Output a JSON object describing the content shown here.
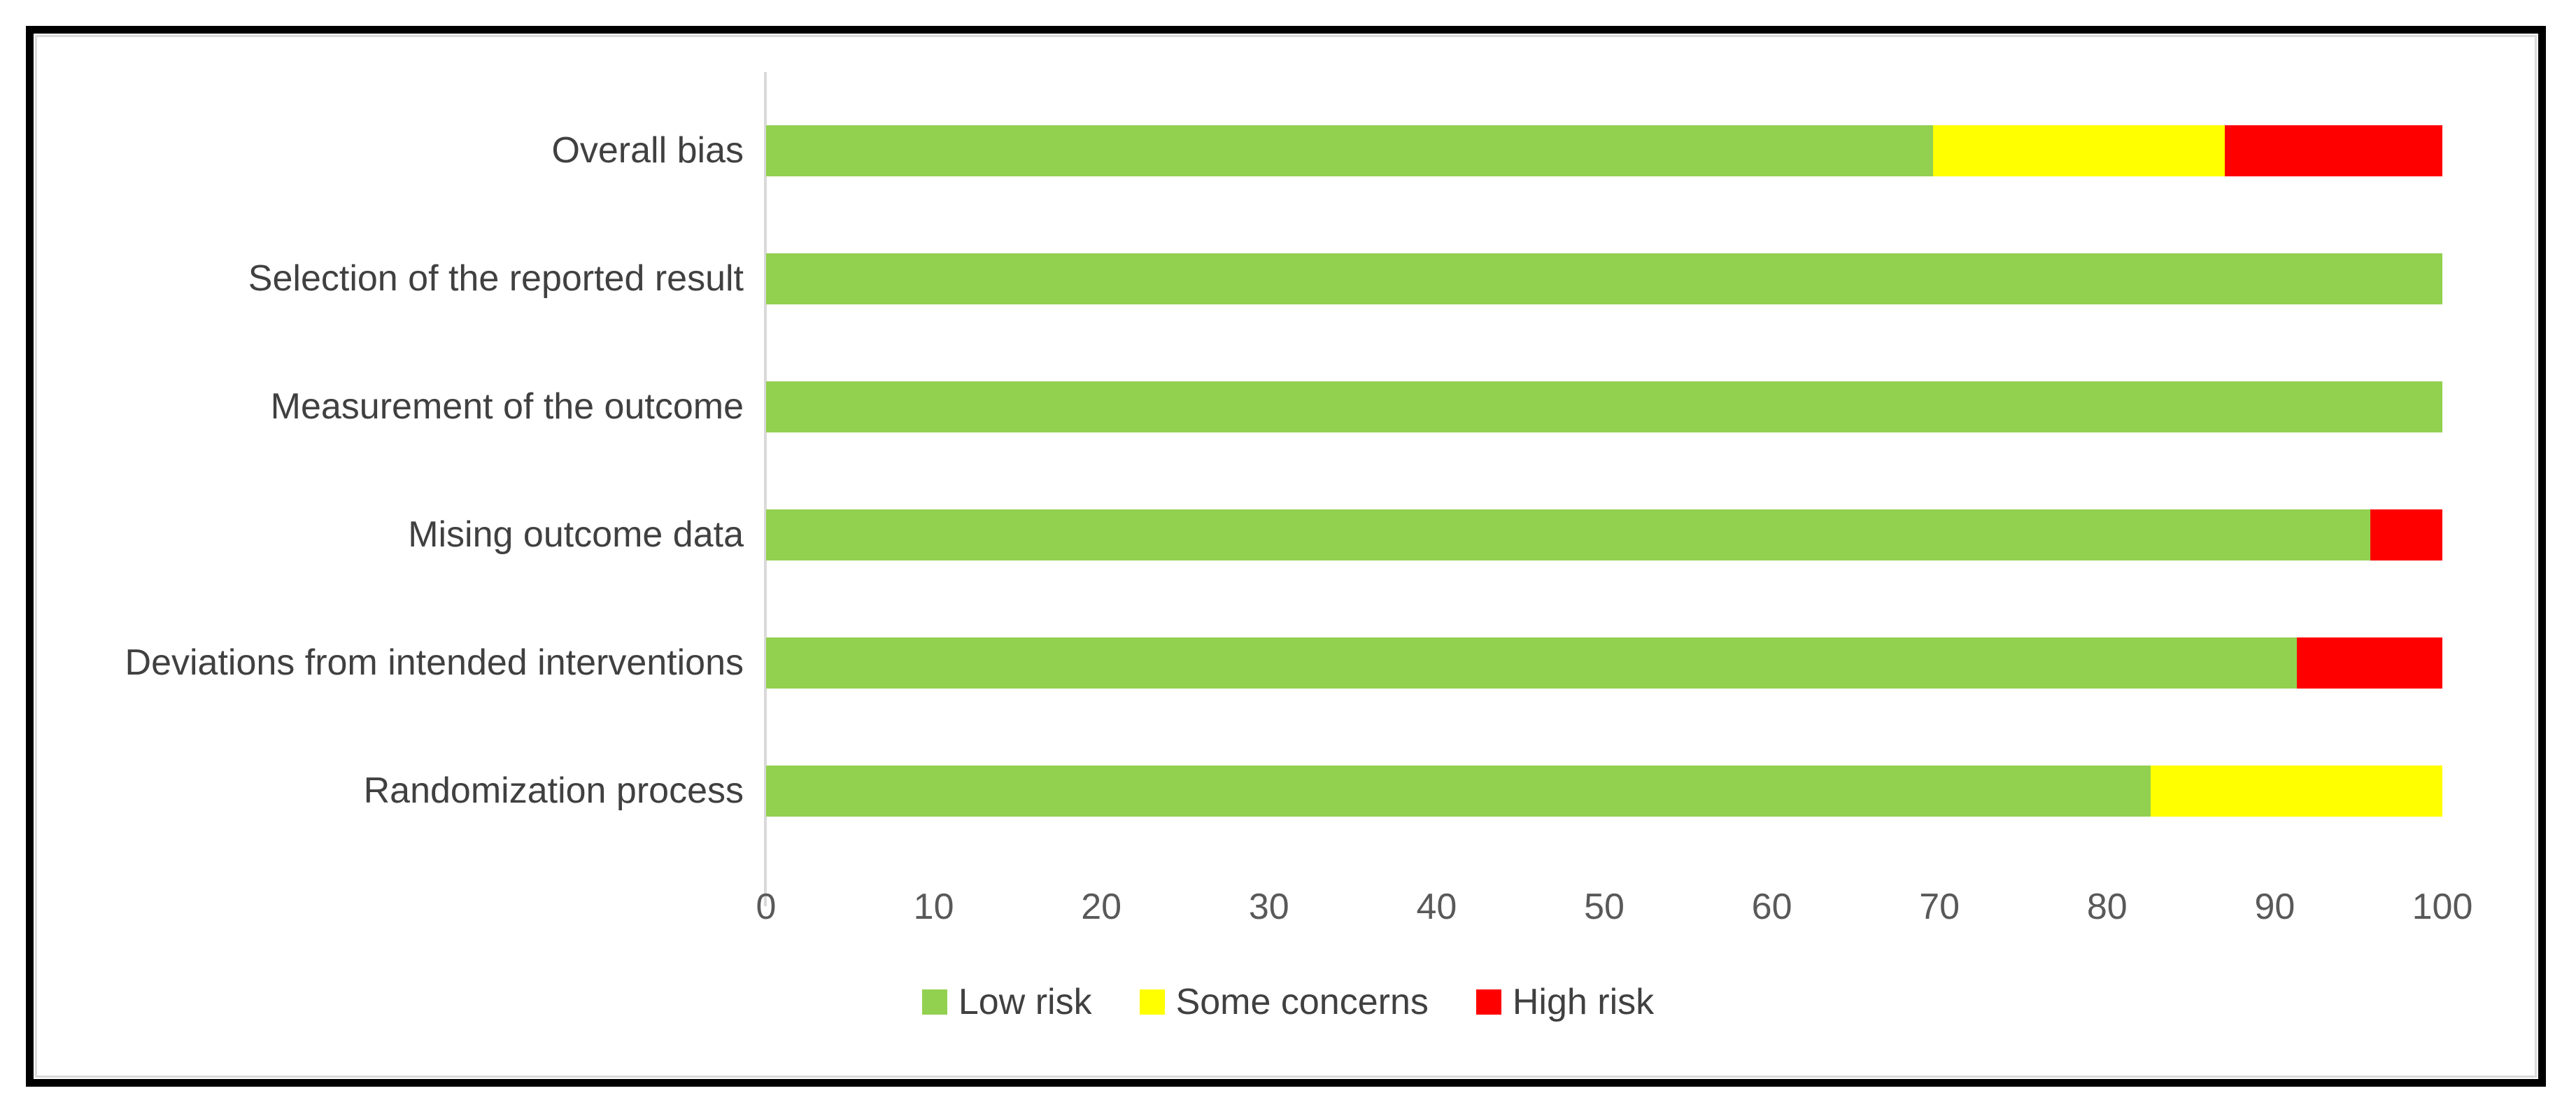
{
  "chart_data": {
    "type": "bar",
    "orientation": "horizontal",
    "stacked": true,
    "units": "percent",
    "title": "",
    "xlabel": "",
    "ylabel": "",
    "categories": [
      "Overall bias",
      "Selection of the reported result",
      "Measurement of the outcome",
      "Mising outcome data",
      "Deviations from intended interventions",
      "Randomization process"
    ],
    "series": [
      {
        "name": "Low risk",
        "color": "#92D050",
        "values": [
          69.6,
          100,
          100,
          95.7,
          91.3,
          82.6
        ]
      },
      {
        "name": "Some concerns",
        "color": "#FFFF00",
        "values": [
          17.4,
          0,
          0,
          0,
          0,
          17.4
        ]
      },
      {
        "name": "High risk",
        "color": "#FF0000",
        "values": [
          13.0,
          0,
          0,
          4.3,
          8.7,
          0
        ]
      }
    ],
    "x_ticks": [
      0,
      10,
      20,
      30,
      40,
      50,
      60,
      70,
      80,
      90,
      100
    ],
    "xlim": [
      0,
      100
    ],
    "gridlines": false,
    "legend_position": "bottom"
  },
  "colors": {
    "low_risk": "#92D050",
    "some_concerns": "#FFFF00",
    "high_risk": "#FF0000",
    "axis_line": "#D9D9D9",
    "tick_text": "#595959",
    "category_text": "#404040",
    "outer_border": "#000000",
    "inner_border": "#DADADA",
    "background": "#FFFFFF"
  }
}
